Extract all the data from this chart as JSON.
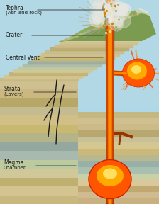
{
  "figsize": [
    2.24,
    2.88
  ],
  "dpi": 100,
  "labels": {
    "tephra": "Tephra —",
    "tephra2": "(Ash and rock)",
    "crater": "Crater",
    "central_vent": "Central Vent",
    "strata": "Strata\n(Layers)",
    "magma_chamber": "Magma\nChamber"
  },
  "sky_colors": [
    "#A8D8E8",
    "#78C8E0",
    "#B8E0EC",
    "#C8EAF0"
  ],
  "mountain_green": "#7A9B50",
  "mountain_green2": "#8BAD5A",
  "snow_white": "#E8EDE0",
  "strata_colors_bottom": [
    "#C8B48A",
    "#D4C098",
    "#C0A878",
    "#CCBFA0",
    "#B8C8A8",
    "#A0B8A8",
    "#90A898",
    "#B8B890",
    "#C8C090",
    "#D0C898",
    "#C4B880",
    "#CCB878"
  ],
  "strata_colors_top": [
    "#C8C0A0",
    "#D4C8A8",
    "#C0B890",
    "#CCBEA0",
    "#B8C0A8",
    "#A0ACA0",
    "#A8B8A8",
    "#B8B898"
  ],
  "vent_color": "#CC4400",
  "vent_inner": "#FF7700",
  "lava_orange": "#FF6600",
  "lava_yellow": "#FFAA00",
  "font_size": 5.5,
  "label_color": "#1A1A1A",
  "line_color": "#333333",
  "line_lw": 0.6
}
